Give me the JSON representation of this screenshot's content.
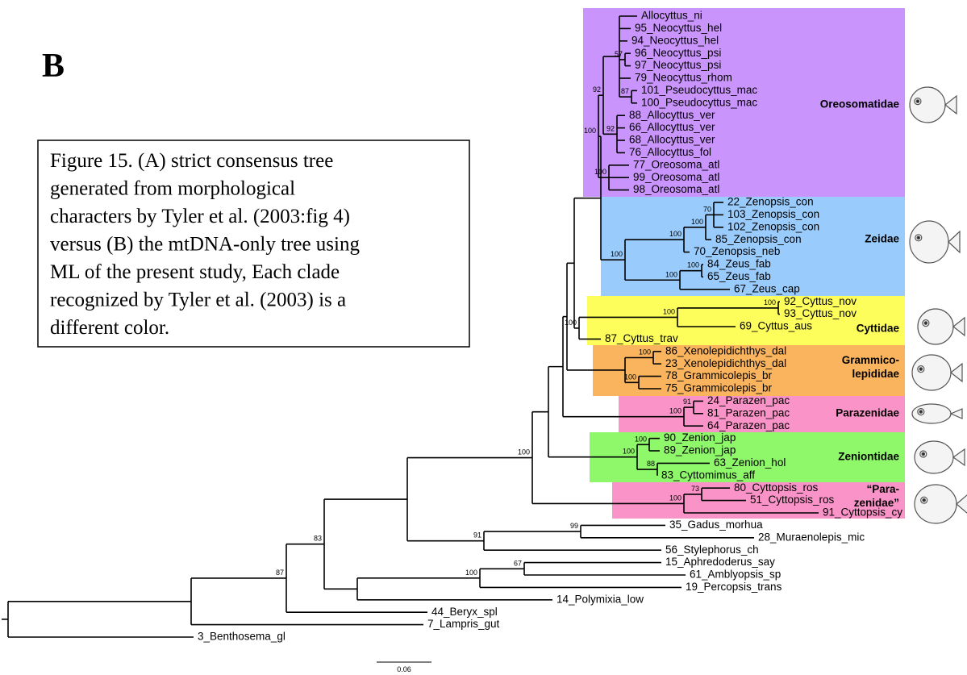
{
  "panel_label": "B",
  "caption": [
    "Figure 15. (A) strict consensus tree",
    "generated from morphological",
    "characters by Tyler et al. (2003:fig 4)",
    "versus (B) the mtDNA-only tree using",
    "ML of the present study, Each clade",
    "recognized by Tyler et al. (2003) is a",
    "different color."
  ],
  "clades": [
    {
      "name": [
        "Oreosomatidae"
      ],
      "color": "#c994fb"
    },
    {
      "name": [
        "Zeidae"
      ],
      "color": "#99ccfc"
    },
    {
      "name": [
        "Cyttidae"
      ],
      "color": "#fdfd5c"
    },
    {
      "name": [
        "Grammico-",
        "lepididae"
      ],
      "color": "#fab45d"
    },
    {
      "name": [
        "Parazenidae"
      ],
      "color": "#fa94c8"
    },
    {
      "name": [
        "Zeniontidae"
      ],
      "color": "#8ef76a"
    },
    {
      "name": [
        "“Para-",
        "zenidae”"
      ],
      "color": "#fa94c8"
    }
  ],
  "taxa": [
    "Allocyttus_ni",
    "95_Neocyttus_hel",
    "94_Neocyttus_hel",
    "96_Neocyttus_psi",
    "97_Neocyttus_psi",
    "79_Neocyttus_rhom",
    "101_Pseudocyttus_mac",
    "100_Pseudocyttus_mac",
    "88_Allocyttus_ver",
    "66_Allocyttus_ver",
    "68_Allocyttus_ver",
    "76_Allocyttus_fol",
    "77_Oreosoma_atl",
    "99_Oreosoma_atl",
    "98_Oreosoma_atl",
    "22_Zenopsis_con",
    "103_Zenopsis_con",
    "102_Zenopsis_con",
    "85_Zenopsis_con",
    "70_Zenopsis_neb",
    "84_Zeus_fab",
    "65_Zeus_fab",
    "67_Zeus_cap",
    "92_Cyttus_nov",
    "93_Cyttus_nov",
    "69_Cyttus_aus",
    "87_Cyttus_trav",
    "86_Xenolepidichthys_dal",
    "23_Xenolepidichthys_dal",
    "78_Grammicolepis_br",
    "75_Grammicolepis_br",
    "24_Parazen_pac",
    "81_Parazen_pac",
    "64_Parazen_pac",
    "90_Zenion_jap",
    "89_Zenion_jap",
    "63_Zenion_hol",
    "83_Cyttomimus_aff",
    "80_Cyttopsis_ros",
    "51_Cyttopsis_ros",
    "91_Cyttopsis_cy",
    "35_Gadus_morhua",
    "28_Muraenolepis_mic",
    "56_Stylephorus_ch",
    "15_Aphredoderus_say",
    "61_Amblyopsis_sp",
    "19_Percopsis_trans",
    "14_Polymixia_low",
    "44_Beryx_spl",
    "7_Lampris_gut",
    "3_Benthosema_gl"
  ],
  "support_values": [
    57,
    87,
    92,
    100,
    92,
    100,
    70,
    100,
    100,
    100,
    100,
    100,
    100,
    100,
    100,
    100,
    100,
    91,
    100,
    100,
    88,
    100,
    73,
    100,
    100,
    99,
    91,
    67,
    100,
    83,
    87
  ],
  "scale_bar_label": "0.06"
}
